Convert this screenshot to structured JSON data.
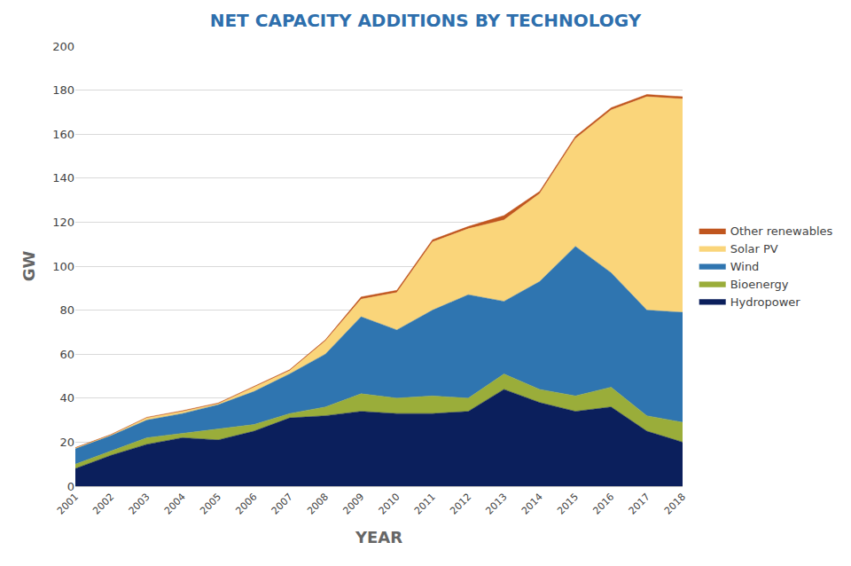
{
  "chart_data": {
    "type": "area",
    "title": "NET CAPACITY ADDITIONS BY TECHNOLOGY",
    "x_label": "YEAR",
    "y_label": "GW",
    "categories": [
      "2001",
      "2002",
      "2003",
      "2004",
      "2005",
      "2006",
      "2007",
      "2008",
      "2009",
      "2010",
      "2011",
      "2012",
      "2013",
      "2014",
      "2015",
      "2016",
      "2017",
      "2018"
    ],
    "stacked": true,
    "grid": true,
    "legend": "right",
    "ylim": [
      0,
      200
    ],
    "yticks": [
      0,
      20,
      40,
      60,
      80,
      100,
      120,
      140,
      160,
      180,
      200
    ],
    "series": [
      {
        "name": "Hydropower",
        "color": "#0b1f5c",
        "values": [
          8,
          14,
          19,
          22,
          21,
          25,
          31,
          32,
          34,
          33,
          33,
          34,
          44,
          38,
          34,
          36,
          25,
          20
        ]
      },
      {
        "name": "Bioenergy",
        "color": "#9aad3a",
        "values": [
          2,
          2,
          3,
          2,
          5,
          3,
          2,
          4,
          8,
          7,
          8,
          6,
          7,
          6,
          7,
          9,
          7,
          9
        ]
      },
      {
        "name": "Wind",
        "color": "#2f75b0",
        "values": [
          7,
          7,
          8,
          9,
          11,
          15,
          18,
          24,
          35,
          31,
          39,
          47,
          33,
          49,
          68,
          52,
          48,
          50
        ]
      },
      {
        "name": "Solar PV",
        "color": "#fad57a",
        "values": [
          0.3,
          0.3,
          1,
          1,
          0.5,
          2,
          1.5,
          6,
          8,
          17,
          31,
          30,
          37,
          40,
          49,
          74,
          97,
          97
        ]
      },
      {
        "name": "Other renewables",
        "color": "#c0561f",
        "values": [
          0.2,
          0.2,
          0.3,
          0.3,
          0.3,
          0.3,
          0.4,
          0.5,
          1,
          1,
          1,
          1,
          2,
          1,
          1,
          1,
          1,
          1
        ]
      }
    ]
  }
}
